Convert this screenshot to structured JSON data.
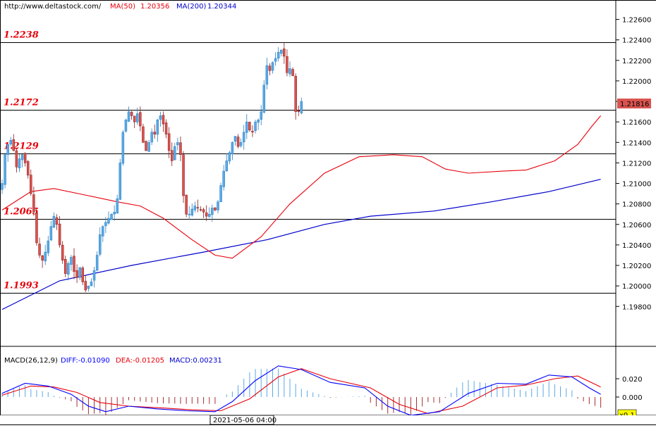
{
  "header": {
    "url": "http://www.deltastock.com/",
    "ma50_label": "MA(50)",
    "ma50_value": "1.20356",
    "ma200_label": "MA(200)",
    "ma200_value": "1.20344"
  },
  "macd_header": {
    "name": "MACD(26,12,9)",
    "diff": "DIFF:-0.01090",
    "dea": "DEA:-0.01205",
    "macd": "MACD:0.00231"
  },
  "time_label": "2021-05-06 04:00",
  "zoom_label": "x0.1",
  "price_tag": "1.21816",
  "colors": {
    "bull": "#5aa9e6",
    "bear": "#d9534f",
    "ma50": "#e8000b",
    "ma200": "#0000cc",
    "level_text": "#e8000b",
    "diff": "#0000ff",
    "dea": "#e8000b",
    "hist_pos": "#5aa9e6",
    "hist_neg": "#a33030"
  },
  "chart_data": [
    {
      "type": "candlestick",
      "title": "",
      "y_ticks": [
        "1.22600",
        "1.22400",
        "1.22200",
        "1.22000",
        "1.21800",
        "1.21600",
        "1.21400",
        "1.21200",
        "1.21000",
        "1.20800",
        "1.20600",
        "1.20400",
        "1.20200",
        "1.20000",
        "1.19800"
      ],
      "ylim": [
        1.196,
        1.2266
      ],
      "levels": [
        {
          "label": "1.2238",
          "value": 1.2238
        },
        {
          "label": "1.2172",
          "value": 1.2172
        },
        {
          "label": "1.2129",
          "value": 1.2129
        },
        {
          "label": "1.2065",
          "value": 1.2065
        },
        {
          "label": "1.1993",
          "value": 1.1993
        }
      ],
      "close_path": [
        1.21,
        1.2128,
        1.2138,
        1.2142,
        1.2132,
        1.2116,
        1.2124,
        1.2128,
        1.212,
        1.2108,
        1.209,
        1.2072,
        1.2042,
        1.203,
        1.2025,
        1.2033,
        1.2044,
        1.2058,
        1.2068,
        1.206,
        1.204,
        1.2025,
        1.2012,
        1.2022,
        1.2028,
        1.2014,
        1.2008,
        1.2018,
        1.2004,
        1.1996,
        1.2,
        1.2004,
        1.2015,
        1.203,
        1.205,
        1.2058,
        1.2062,
        1.2066,
        1.207,
        1.2072,
        1.2085,
        1.212,
        1.215,
        1.2162,
        1.217,
        1.2166,
        1.216,
        1.2168,
        1.2156,
        1.214,
        1.2132,
        1.214,
        1.215,
        1.2148,
        1.2162,
        1.2166,
        1.2158,
        1.2148,
        1.2132,
        1.2122,
        1.2136,
        1.214,
        1.2128,
        1.2088,
        1.207,
        1.207,
        1.2075,
        1.2078,
        1.2076,
        1.2074,
        1.2072,
        1.2068,
        1.207,
        1.2076,
        1.2074,
        1.2082,
        1.2098,
        1.2112,
        1.2122,
        1.213,
        1.214,
        1.2146,
        1.2136,
        1.214,
        1.215,
        1.216,
        1.2152,
        1.215,
        1.216,
        1.2162,
        1.217,
        1.2196,
        1.2215,
        1.221,
        1.2218,
        1.2222,
        1.2228,
        1.223,
        1.2224,
        1.2208,
        1.2212,
        1.2205,
        1.217,
        1.217,
        1.218
      ],
      "ma50": [
        {
          "x": 0,
          "y": 1.2074
        },
        {
          "x": 10,
          "y": 1.2092
        },
        {
          "x": 18,
          "y": 1.2095
        },
        {
          "x": 30,
          "y": 1.2088
        },
        {
          "x": 40,
          "y": 1.2082
        },
        {
          "x": 48,
          "y": 1.2078
        },
        {
          "x": 56,
          "y": 1.2066
        },
        {
          "x": 66,
          "y": 1.2045
        },
        {
          "x": 74,
          "y": 1.203
        },
        {
          "x": 80,
          "y": 1.2027
        },
        {
          "x": 90,
          "y": 1.2048
        },
        {
          "x": 100,
          "y": 1.208
        },
        {
          "x": 112,
          "y": 1.211
        },
        {
          "x": 124,
          "y": 1.2126
        },
        {
          "x": 136,
          "y": 1.2128
        },
        {
          "x": 146,
          "y": 1.2126
        },
        {
          "x": 154,
          "y": 1.2114
        },
        {
          "x": 162,
          "y": 1.211
        },
        {
          "x": 174,
          "y": 1.2112
        },
        {
          "x": 182,
          "y": 1.2113
        },
        {
          "x": 192,
          "y": 1.2122
        },
        {
          "x": 200,
          "y": 1.2138
        },
        {
          "x": 205,
          "y": 1.2156
        },
        {
          "x": 208,
          "y": 1.2166
        }
      ],
      "ma200": [
        {
          "x": 0,
          "y": 1.1977
        },
        {
          "x": 20,
          "y": 1.2005
        },
        {
          "x": 45,
          "y": 1.202
        },
        {
          "x": 70,
          "y": 1.2033
        },
        {
          "x": 92,
          "y": 1.2045
        },
        {
          "x": 112,
          "y": 1.206
        },
        {
          "x": 128,
          "y": 1.2068
        },
        {
          "x": 150,
          "y": 1.2073
        },
        {
          "x": 170,
          "y": 1.2082
        },
        {
          "x": 190,
          "y": 1.2092
        },
        {
          "x": 208,
          "y": 1.2104
        }
      ]
    },
    {
      "type": "macd",
      "title": "",
      "y_ticks": [
        "0.020",
        "0.000"
      ],
      "ylim": [
        -0.02,
        0.035
      ],
      "diff_path": [
        {
          "x": 0,
          "y": 0.004
        },
        {
          "x": 8,
          "y": 0.015
        },
        {
          "x": 16,
          "y": 0.012
        },
        {
          "x": 24,
          "y": 0.003
        },
        {
          "x": 30,
          "y": -0.01
        },
        {
          "x": 36,
          "y": -0.016
        },
        {
          "x": 44,
          "y": -0.01
        },
        {
          "x": 54,
          "y": -0.013
        },
        {
          "x": 64,
          "y": -0.015
        },
        {
          "x": 74,
          "y": -0.016
        },
        {
          "x": 80,
          "y": -0.005
        },
        {
          "x": 88,
          "y": 0.018
        },
        {
          "x": 96,
          "y": 0.034
        },
        {
          "x": 104,
          "y": 0.03
        },
        {
          "x": 114,
          "y": 0.016
        },
        {
          "x": 126,
          "y": 0.01
        },
        {
          "x": 134,
          "y": -0.01
        },
        {
          "x": 142,
          "y": -0.02
        },
        {
          "x": 152,
          "y": -0.016
        },
        {
          "x": 162,
          "y": 0.004
        },
        {
          "x": 172,
          "y": 0.015
        },
        {
          "x": 182,
          "y": 0.014
        },
        {
          "x": 190,
          "y": 0.024
        },
        {
          "x": 198,
          "y": 0.022
        },
        {
          "x": 204,
          "y": 0.01
        },
        {
          "x": 208,
          "y": 0.003
        }
      ],
      "dea_path": [
        {
          "x": 0,
          "y": 0.002
        },
        {
          "x": 10,
          "y": 0.012
        },
        {
          "x": 18,
          "y": 0.011
        },
        {
          "x": 26,
          "y": 0.005
        },
        {
          "x": 34,
          "y": -0.006
        },
        {
          "x": 44,
          "y": -0.01
        },
        {
          "x": 56,
          "y": -0.012
        },
        {
          "x": 66,
          "y": -0.014
        },
        {
          "x": 76,
          "y": -0.015
        },
        {
          "x": 86,
          "y": -0.002
        },
        {
          "x": 96,
          "y": 0.022
        },
        {
          "x": 104,
          "y": 0.031
        },
        {
          "x": 114,
          "y": 0.02
        },
        {
          "x": 128,
          "y": 0.01
        },
        {
          "x": 138,
          "y": -0.008
        },
        {
          "x": 148,
          "y": -0.018
        },
        {
          "x": 160,
          "y": -0.01
        },
        {
          "x": 172,
          "y": 0.01
        },
        {
          "x": 182,
          "y": 0.013
        },
        {
          "x": 192,
          "y": 0.02
        },
        {
          "x": 200,
          "y": 0.023
        },
        {
          "x": 208,
          "y": 0.011
        }
      ]
    }
  ]
}
